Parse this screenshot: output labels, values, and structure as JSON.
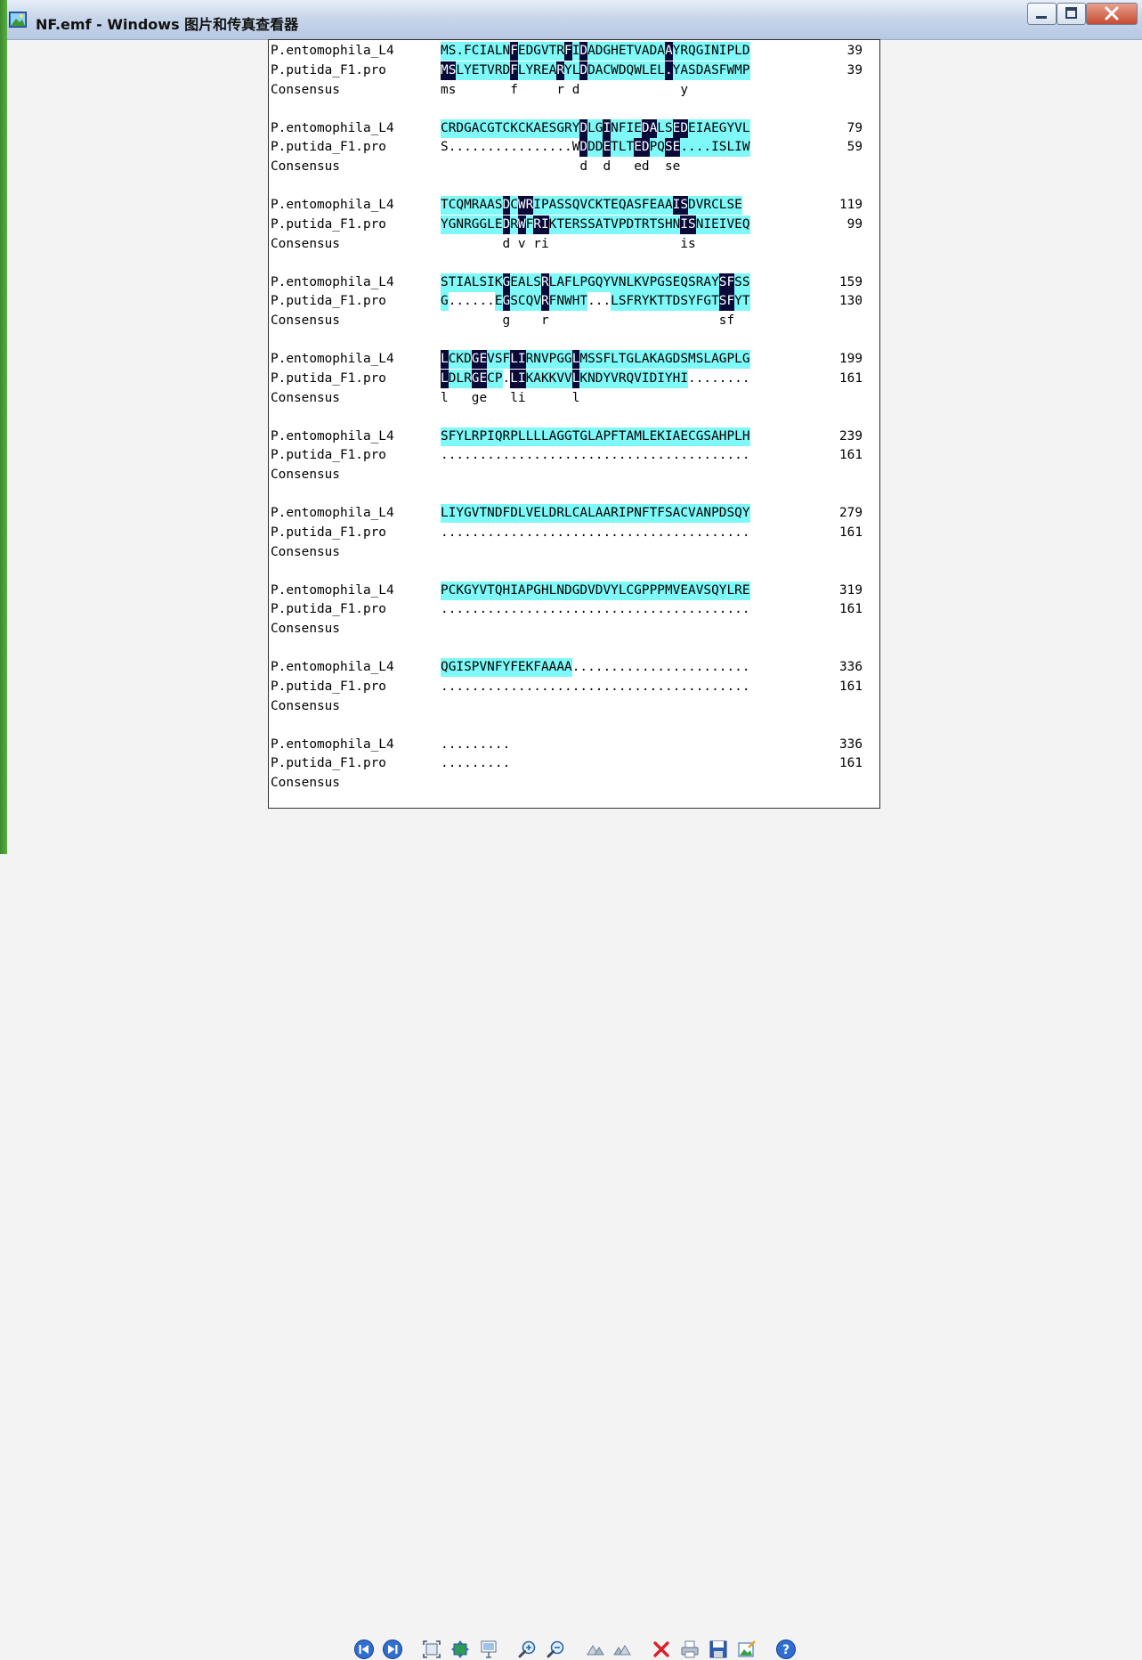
{
  "window": {
    "title": "NF.emf - Windows 图片和传真查看器",
    "controls": {
      "minimize": "minimize-icon",
      "maximize": "maximize-icon",
      "close": "close-icon"
    }
  },
  "alignment": {
    "colors": {
      "similar": "#7ff8f8",
      "identical": "#0a0a3a"
    },
    "blocks": [
      {
        "rows": [
          {
            "name": "P.entomophila_L4",
            "seq": "MS.FCIALNFEDGVTRFIDADGHETVADAAYRQGINIPLD",
            "hl": "HHHHHHHHHDHHHHHHDHDHHHHHHHHHHDHHHHHHHHHH",
            "num": "39"
          },
          {
            "name": "P.putida_F1.pro",
            "seq": "MSLYETVRDFLYREARYLDDACWDQWLEL.YASDASFWMP",
            "hl": "DDHHHHHHHDHHHHHDHHDHHHHHHHHHHDHHHHHHHHHH",
            "num": "39"
          },
          {
            "name": "Consensus",
            "seq": "ms       f     r d             y        ",
            "hl": "",
            "num": ""
          }
        ]
      },
      {
        "rows": [
          {
            "name": "P.entomophila_L4",
            "seq": "CRDGACGTCKCKAESGRYDLGINFIEDALSEDEIAEGYVL",
            "hl": "HHHHHHHHHHHHHHHHHHDHHDHHHHDDHHDDHHHHHHHH",
            "num": "79"
          },
          {
            "name": "P.putida_F1.pro",
            "seq": "S................WDDDETLTEDPQSE....ISLIW",
            "hl": "                  DHHDHHHDDHHDDHHHHHHHHH",
            "num": "59"
          },
          {
            "name": "Consensus",
            "seq": "                  d  d   ed  se         ",
            "hl": "",
            "num": ""
          }
        ]
      },
      {
        "rows": [
          {
            "name": "P.entomophila_L4",
            "seq": "TCQMRAASDCWRIPASSQVCKTEQASFEAAISDVRCLSE",
            "hl": "HHHHHHHHDHDDHHHHHHHHHHHHHHHHHHDDHHHHHHH",
            "num": "119"
          },
          {
            "name": "P.putida_F1.pro",
            "seq": "YGNRGGLEDRWFRIKTERSSATVPDTRTSHNISNIEIVEQ",
            "hl": "HHHHHHHHDHDHDDHHHHHHHHHHHHHHHHHDDHHHHHHH",
            "num": "99"
          },
          {
            "name": "Consensus",
            "seq": "        d v ri                 is       ",
            "hl": "",
            "num": ""
          }
        ]
      },
      {
        "rows": [
          {
            "name": "P.entomophila_L4",
            "seq": "STIALSIKGEALSRLAFLPGQYVNLKVPGSEQSRAYSFSS",
            "hl": "HHHHHHHHDHHHHDHHHHHHHHHHHHHHHHHHHHHHDDHH",
            "num": "159"
          },
          {
            "name": "P.putida_F1.pro",
            "seq": "G......EGSCQVRFNWHT...LSFRYKTTDSYFGTSFYT",
            "hl": "H      HDHHHHDHHHHH   HHHHHHHHHHHHHHDDHH",
            "num": "130"
          },
          {
            "name": "Consensus",
            "seq": "        g    r                      sf  ",
            "hl": "",
            "num": ""
          }
        ]
      },
      {
        "rows": [
          {
            "name": "P.entomophila_L4",
            "seq": "LCKDGEVSFLIRNVPGGLMSSFLTGLAKAGDSMSLAGPLG",
            "hl": "DHHHDDHHHDDHHHHHHDHHHHHHHHHHHHHHHHHHHHHH",
            "num": "199"
          },
          {
            "name": "P.putida_F1.pro",
            "seq": "LDLRGECP.LIKAKKVVLKNDYVRQVIDIYHI........",
            "hl": "DHHHDDHH DDHHHHHHDHHHHHHHHHHHHHH        ",
            "num": "161"
          },
          {
            "name": "Consensus",
            "seq": "l   ge   li      l                      ",
            "hl": "",
            "num": ""
          }
        ]
      },
      {
        "rows": [
          {
            "name": "P.entomophila_L4",
            "seq": "SFYLRPIQRPLLLLAGGTGLAPFTAMLEKIAECGSAHPLH",
            "hl": "HHHHHHHHHHHHHHHHHHHHHHHHHHHHHHHHHHHHHHHH",
            "num": "239"
          },
          {
            "name": "P.putida_F1.pro",
            "seq": "........................................",
            "hl": "",
            "num": "161"
          },
          {
            "name": "Consensus",
            "seq": "",
            "hl": "",
            "num": ""
          }
        ]
      },
      {
        "rows": [
          {
            "name": "P.entomophila_L4",
            "seq": "LIYGVTNDFDLVELDRLCALAARIPNFTFSACVANPDSQY",
            "hl": "HHHHHHHHHHHHHHHHHHHHHHHHHHHHHHHHHHHHHHHH",
            "num": "279"
          },
          {
            "name": "P.putida_F1.pro",
            "seq": "........................................",
            "hl": "",
            "num": "161"
          },
          {
            "name": "Consensus",
            "seq": "",
            "hl": "",
            "num": ""
          }
        ]
      },
      {
        "rows": [
          {
            "name": "P.entomophila_L4",
            "seq": "PCKGYVTQHIAPGHLNDGDVDVYLCGPPPMVEAVSQYLRE",
            "hl": "HHHHHHHHHHHHHHHHHHHHHHHHHHHHHHHHHHHHHHHH",
            "num": "319"
          },
          {
            "name": "P.putida_F1.pro",
            "seq": "........................................",
            "hl": "",
            "num": "161"
          },
          {
            "name": "Consensus",
            "seq": "",
            "hl": "",
            "num": ""
          }
        ]
      },
      {
        "rows": [
          {
            "name": "P.entomophila_L4",
            "seq": "QGISPVNFYFEKFAAAA.......................",
            "hl": "HHHHHHHHHHHHHHHHH",
            "num": "336"
          },
          {
            "name": "P.putida_F1.pro",
            "seq": "........................................",
            "hl": "",
            "num": "161"
          },
          {
            "name": "Consensus",
            "seq": "",
            "hl": "",
            "num": ""
          }
        ]
      },
      {
        "rows": [
          {
            "name": "P.entomophila_L4",
            "seq": ".........",
            "hl": "",
            "num": "336"
          },
          {
            "name": "P.putida_F1.pro",
            "seq": ".........",
            "hl": "",
            "num": "161"
          },
          {
            "name": "Consensus",
            "seq": "",
            "hl": "",
            "num": ""
          }
        ]
      }
    ]
  },
  "toolbar": {
    "buttons": [
      {
        "name": "previous-image-button",
        "icon": "previous-icon"
      },
      {
        "name": "next-image-button",
        "icon": "next-icon"
      },
      {
        "name": "best-fit-button",
        "icon": "best-fit-icon"
      },
      {
        "name": "actual-size-button",
        "icon": "actual-size-icon"
      },
      {
        "name": "slideshow-button",
        "icon": "slideshow-icon"
      },
      {
        "name": "zoom-in-button",
        "icon": "zoom-in-icon"
      },
      {
        "name": "zoom-out-button",
        "icon": "zoom-out-icon"
      },
      {
        "name": "rotate-clockwise-button",
        "icon": "rotate-clockwise-icon"
      },
      {
        "name": "rotate-counterclockwise-button",
        "icon": "rotate-counterclockwise-icon"
      },
      {
        "name": "delete-button",
        "icon": "delete-icon"
      },
      {
        "name": "print-button",
        "icon": "print-icon"
      },
      {
        "name": "save-button",
        "icon": "save-icon"
      },
      {
        "name": "open-editor-button",
        "icon": "edit-icon"
      },
      {
        "name": "help-button",
        "icon": "help-icon"
      }
    ]
  }
}
